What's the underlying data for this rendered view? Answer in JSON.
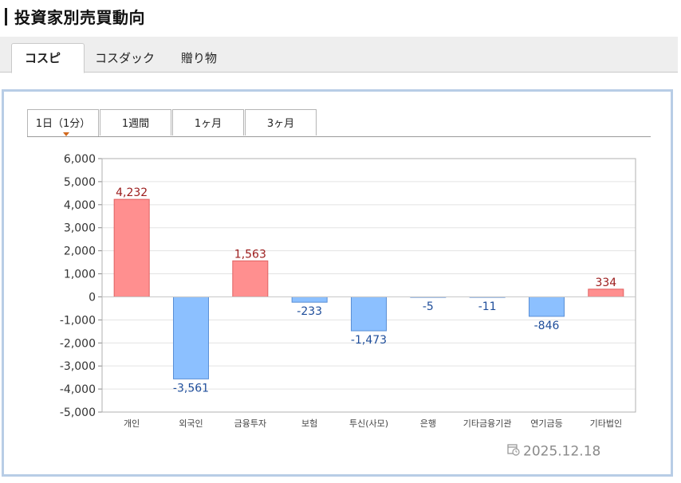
{
  "page": {
    "title": "投資家別売買動向"
  },
  "tabs": [
    {
      "label": "コスピ",
      "active": true
    },
    {
      "label": "コスダック",
      "active": false
    },
    {
      "label": "贈り物",
      "active": false
    }
  ],
  "periods": [
    {
      "label": "1日（1分）",
      "active": true
    },
    {
      "label": "1週間",
      "active": false
    },
    {
      "label": "1ヶ月",
      "active": false
    },
    {
      "label": "3ヶ月",
      "active": false
    }
  ],
  "date": {
    "text": "2025.12.18",
    "icon": "calendar-clock-icon"
  },
  "colors": {
    "positive_fill": "#ff8f8f",
    "positive_stroke": "#e06060",
    "positive_label": "#9b1b1b",
    "negative_fill": "#8cc0ff",
    "negative_stroke": "#5a8fd6",
    "negative_label": "#1e4d9a"
  },
  "chart_data": {
    "type": "bar",
    "categories": [
      "개인",
      "외국인",
      "금융투자",
      "보험",
      "투신(사모)",
      "은행",
      "기타금융기관",
      "연기금등",
      "기타법인"
    ],
    "values": [
      4232,
      -3561,
      1563,
      -233,
      -1473,
      -5,
      -11,
      -846,
      334
    ],
    "value_labels": [
      "4,232",
      "-3,561",
      "1,563",
      "-233",
      "-1,473",
      "-5",
      "-11",
      "-846",
      "334"
    ],
    "ylim": [
      -5000,
      6000
    ],
    "yticks": [
      6000,
      5000,
      4000,
      3000,
      2000,
      1000,
      0,
      -1000,
      -2000,
      -3000,
      -4000,
      -5000
    ],
    "ytick_labels": [
      "6,000",
      "5,000",
      "4,000",
      "3,000",
      "2,000",
      "1,000",
      "0",
      "-1,000",
      "-2,000",
      "-3,000",
      "-4,000",
      "-5,000"
    ],
    "grid": true
  }
}
